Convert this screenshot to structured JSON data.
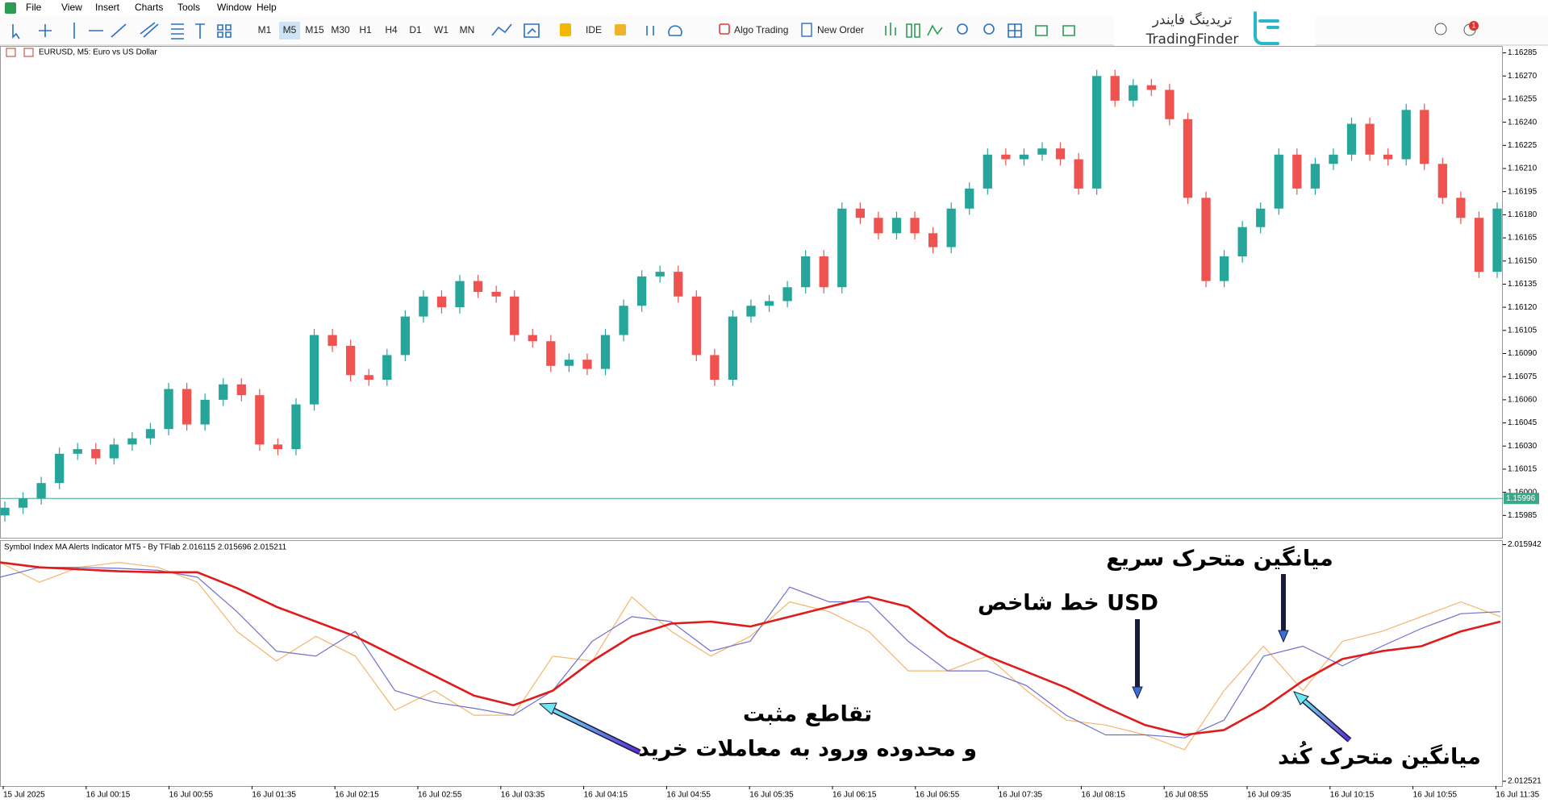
{
  "menu": [
    "File",
    "View",
    "Insert",
    "Charts",
    "Tools",
    "Window",
    "Help"
  ],
  "toolbar": {
    "timeframes": [
      "M1",
      "M5",
      "M15",
      "M30",
      "H1",
      "H4",
      "D1",
      "W1",
      "MN"
    ],
    "ide": "IDE",
    "algo_trading": "Algo Trading",
    "new_order": "New Order",
    "notification_count": 1
  },
  "logo": {
    "title_fa": "تریدینگ فایندر",
    "title_en": "TradingFinder"
  },
  "chart_data": [
    {
      "type": "candlestick",
      "title": "EURUSD, M5:  Euro vs US Dollar",
      "up_color": "#26a69a",
      "down_color": "#ef5350",
      "ylim": [
        1.1597,
        1.1629
      ],
      "yticks": [
        1.15985,
        {
          "value": 1.16,
          "label": "1.16000"
        },
        1.16015,
        {
          "value": 1.1603,
          "label": "1.16030"
        },
        1.16045,
        {
          "value": 1.1606,
          "label": "1.16060"
        },
        1.16075,
        {
          "value": 1.1609,
          "label": "1.16090"
        },
        1.16105,
        {
          "value": 1.1612,
          "label": "1.16120"
        },
        1.16135,
        {
          "value": 1.1615,
          "label": "1.16150"
        },
        1.16165,
        {
          "value": 1.1618,
          "label": "1.16180"
        },
        1.16195,
        {
          "value": 1.1621,
          "label": "1.16210"
        },
        1.16225,
        {
          "value": 1.1624,
          "label": "1.16240"
        },
        1.16255,
        {
          "value": 1.1627,
          "label": "1.16270"
        },
        1.16285
      ],
      "current_price": 1.15996,
      "current_price_color": "#3aa88a",
      "ohlc": [
        [
          1.15985,
          1.15994,
          1.15981,
          1.1599
        ],
        [
          1.1599,
          1.16,
          1.15986,
          1.15996
        ],
        [
          1.15996,
          1.1601,
          1.15992,
          1.16006
        ],
        [
          1.16006,
          1.16029,
          1.16002,
          1.16025
        ],
        [
          1.16025,
          1.16032,
          1.16021,
          1.16028
        ],
        [
          1.16028,
          1.16032,
          1.16018,
          1.16022
        ],
        [
          1.16022,
          1.16035,
          1.16018,
          1.16031
        ],
        [
          1.16031,
          1.16039,
          1.16027,
          1.16035
        ],
        [
          1.16035,
          1.16045,
          1.16031,
          1.16041
        ],
        [
          1.16041,
          1.16071,
          1.16037,
          1.16067
        ],
        [
          1.16067,
          1.16071,
          1.1604,
          1.16044
        ],
        [
          1.16044,
          1.16064,
          1.1604,
          1.1606
        ],
        [
          1.1606,
          1.16074,
          1.16056,
          1.1607
        ],
        [
          1.1607,
          1.16074,
          1.16059,
          1.16063
        ],
        [
          1.16063,
          1.16067,
          1.16027,
          1.16031
        ],
        [
          1.16031,
          1.16035,
          1.16024,
          1.16028
        ],
        [
          1.16028,
          1.16061,
          1.16024,
          1.16057
        ],
        [
          1.16057,
          1.16106,
          1.16053,
          1.16102
        ],
        [
          1.16102,
          1.16106,
          1.16091,
          1.16095
        ],
        [
          1.16095,
          1.16099,
          1.16072,
          1.16076
        ],
        [
          1.16076,
          1.1608,
          1.16069,
          1.16073
        ],
        [
          1.16073,
          1.16093,
          1.16069,
          1.16089
        ],
        [
          1.16089,
          1.16118,
          1.16085,
          1.16114
        ],
        [
          1.16114,
          1.16131,
          1.1611,
          1.16127
        ],
        [
          1.16127,
          1.16131,
          1.16116,
          1.1612
        ],
        [
          1.1612,
          1.16141,
          1.16116,
          1.16137
        ],
        [
          1.16137,
          1.16141,
          1.16126,
          1.1613
        ],
        [
          1.1613,
          1.16134,
          1.16123,
          1.16127
        ],
        [
          1.16127,
          1.16131,
          1.16098,
          1.16102
        ],
        [
          1.16102,
          1.16106,
          1.16094,
          1.16098
        ],
        [
          1.16098,
          1.16102,
          1.16078,
          1.16082
        ],
        [
          1.16082,
          1.1609,
          1.16078,
          1.16086
        ],
        [
          1.16086,
          1.1609,
          1.16076,
          1.1608
        ],
        [
          1.1608,
          1.16106,
          1.16076,
          1.16102
        ],
        [
          1.16102,
          1.16125,
          1.16098,
          1.16121
        ],
        [
          1.16121,
          1.16144,
          1.16117,
          1.1614
        ],
        [
          1.1614,
          1.16147,
          1.16136,
          1.16143
        ],
        [
          1.16143,
          1.16147,
          1.16123,
          1.16127
        ],
        [
          1.16127,
          1.16131,
          1.16085,
          1.16089
        ],
        [
          1.16089,
          1.16093,
          1.16069,
          1.16073
        ],
        [
          1.16073,
          1.16118,
          1.16069,
          1.16114
        ],
        [
          1.16114,
          1.16125,
          1.1611,
          1.16121
        ],
        [
          1.16121,
          1.16128,
          1.16117,
          1.16124
        ],
        [
          1.16124,
          1.16137,
          1.1612,
          1.16133
        ],
        [
          1.16133,
          1.16157,
          1.16129,
          1.16153
        ],
        [
          1.16153,
          1.16157,
          1.16129,
          1.16133
        ],
        [
          1.16133,
          1.16188,
          1.16129,
          1.16184
        ],
        [
          1.16184,
          1.16188,
          1.16174,
          1.16178
        ],
        [
          1.16178,
          1.16182,
          1.16164,
          1.16168
        ],
        [
          1.16168,
          1.16182,
          1.16164,
          1.16178
        ],
        [
          1.16178,
          1.16182,
          1.16164,
          1.16168
        ],
        [
          1.16168,
          1.16172,
          1.16155,
          1.16159
        ],
        [
          1.16159,
          1.16188,
          1.16155,
          1.16184
        ],
        [
          1.16184,
          1.16201,
          1.1618,
          1.16197
        ],
        [
          1.16197,
          1.16223,
          1.16193,
          1.16219
        ],
        [
          1.16219,
          1.16223,
          1.16212,
          1.16216
        ],
        [
          1.16216,
          1.16223,
          1.16212,
          1.16219
        ],
        [
          1.16219,
          1.16227,
          1.16215,
          1.16223
        ],
        [
          1.16223,
          1.16227,
          1.16212,
          1.16216
        ],
        [
          1.16216,
          1.1622,
          1.16193,
          1.16197
        ],
        [
          1.16197,
          1.16274,
          1.16193,
          1.1627
        ],
        [
          1.1627,
          1.16274,
          1.1625,
          1.16254
        ],
        [
          1.16254,
          1.16268,
          1.1625,
          1.16264
        ],
        [
          1.16264,
          1.16268,
          1.16257,
          1.16261
        ],
        [
          1.16261,
          1.16265,
          1.16238,
          1.16242
        ],
        [
          1.16242,
          1.16246,
          1.16187,
          1.16191
        ],
        [
          1.16191,
          1.16195,
          1.16133,
          1.16137
        ],
        [
          1.16137,
          1.16157,
          1.16133,
          1.16153
        ],
        [
          1.16153,
          1.16176,
          1.16149,
          1.16172
        ],
        [
          1.16172,
          1.16188,
          1.16168,
          1.16184
        ],
        [
          1.16184,
          1.16223,
          1.1618,
          1.16219
        ],
        [
          1.16219,
          1.16223,
          1.16193,
          1.16197
        ],
        [
          1.16197,
          1.16217,
          1.16193,
          1.16213
        ],
        [
          1.16213,
          1.16223,
          1.16209,
          1.16219
        ],
        [
          1.16219,
          1.16243,
          1.16215,
          1.16239
        ],
        [
          1.16239,
          1.16243,
          1.16215,
          1.16219
        ],
        [
          1.16219,
          1.16223,
          1.16212,
          1.16216
        ],
        [
          1.16216,
          1.16252,
          1.16212,
          1.16248
        ],
        [
          1.16248,
          1.16252,
          1.16209,
          1.16213
        ],
        [
          1.16213,
          1.16217,
          1.16187,
          1.16191
        ],
        [
          1.16191,
          1.16195,
          1.16174,
          1.16178
        ],
        [
          1.16178,
          1.16182,
          1.16139,
          1.16143
        ],
        [
          1.16143,
          1.16188,
          1.16139,
          1.16184
        ]
      ]
    },
    {
      "type": "line",
      "title": "Symbol Index MA Alerts Indicator MT5 - By TFlab 2.016115 2.015696 2.015211",
      "ylim": [
        2.012521,
        2.015942
      ],
      "yticks": [
        2.015942,
        2.012521
      ],
      "xtick_labels": [
        "15 Jul 2025",
        "16 Jul 00:15",
        "16 Jul 00:55",
        "16 Jul 01:35",
        "16 Jul 02:15",
        "16 Jul 02:55",
        "16 Jul 03:35",
        "16 Jul 04:15",
        "16 Jul 04:55",
        "16 Jul 05:35",
        "16 Jul 06:15",
        "16 Jul 06:55",
        "16 Jul 07:35",
        "16 Jul 08:15",
        "16 Jul 08:55",
        "16 Jul 09:35",
        "16 Jul 10:15",
        "16 Jul 10:55",
        "16 Jul 11:35"
      ],
      "series": [
        {
          "color": "#f5b56a",
          "width": 1.2,
          "values": [
            2.015685,
            2.0154,
            2.015614,
            2.015685,
            2.015614,
            2.0154,
            2.014688,
            2.01426,
            2.014616,
            2.014331,
            2.013547,
            2.013832,
            2.013476,
            2.013476,
            2.014331,
            2.01426,
            2.015187,
            2.014688,
            2.014331,
            2.014616,
            2.015115,
            2.014973,
            2.014688,
            2.014117,
            2.014117,
            2.014331,
            2.013832,
            2.013405,
            2.013334,
            2.013191,
            2.012977,
            2.013832,
            2.014474,
            2.013832,
            2.014545,
            2.014688,
            2.014901,
            2.015115,
            2.014901
          ]
        },
        {
          "color": "#6f6fd0",
          "width": 1.2,
          "values": [
            2.015472,
            2.015614,
            2.015614,
            2.0156,
            2.015571,
            2.015472,
            2.014973,
            2.014403,
            2.014331,
            2.014688,
            2.013832,
            2.013661,
            2.013576,
            2.013476,
            2.013832,
            2.014545,
            2.014901,
            2.01483,
            2.014403,
            2.014545,
            2.015329,
            2.015115,
            2.015115,
            2.014545,
            2.014117,
            2.014117,
            2.013904,
            2.013476,
            2.013191,
            2.013191,
            2.013148,
            2.013405,
            2.014331,
            2.014474,
            2.014189,
            2.014474,
            2.01473,
            2.014944,
            2.014973
          ]
        },
        {
          "color": "#e01b1b",
          "width": 2.6,
          "values": [
            2.015685,
            2.015614,
            2.015586,
            2.015557,
            2.015543,
            2.015543,
            2.015315,
            2.015044,
            2.01483,
            2.014616,
            2.014331,
            2.014046,
            2.013761,
            2.013619,
            2.013832,
            2.01426,
            2.014616,
            2.014802,
            2.01483,
            2.014759,
            2.014901,
            2.015044,
            2.015187,
            2.015044,
            2.014616,
            2.014331,
            2.014103,
            2.013875,
            2.01359,
            2.013334,
            2.013191,
            2.013262,
            2.013576,
            2.013975,
            2.014289,
            2.014403,
            2.014474,
            2.014688,
            2.01483
          ]
        }
      ],
      "annotations": [
        "میانگین متحرک سریع",
        "خط شاخص USD",
        "تقاطع مثبت",
        "و محدوده ورود به معاملات خرید",
        "میانگین متحرک کُند"
      ]
    }
  ]
}
